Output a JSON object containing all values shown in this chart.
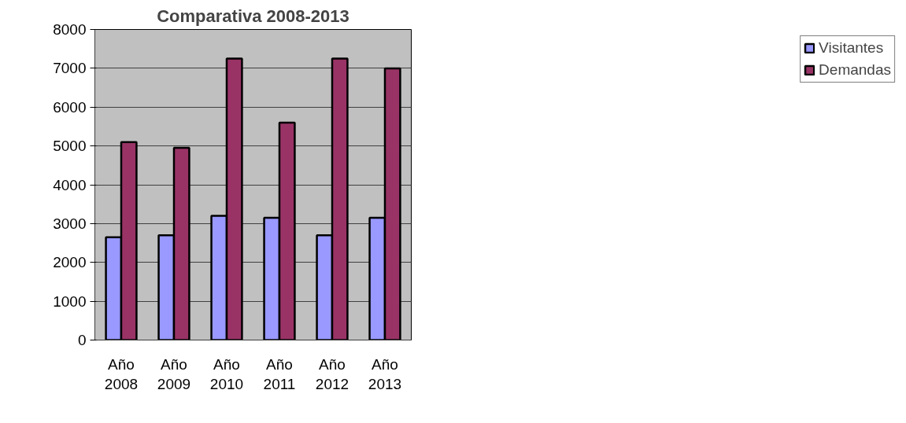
{
  "chart_data": {
    "type": "bar",
    "title": "Comparativa 2008-2013",
    "categories": [
      "Año 2008",
      "Año 2009",
      "Año 2010",
      "Año 2011",
      "Año 2012",
      "Año 2013"
    ],
    "series": [
      {
        "name": "Visitantes",
        "color": "#9999ff",
        "values": [
          2650,
          2700,
          3200,
          3150,
          2700,
          3150
        ]
      },
      {
        "name": "Demandas",
        "color": "#993366",
        "values": [
          5100,
          4950,
          7250,
          5600,
          7250,
          7000
        ]
      }
    ],
    "ylim": [
      0,
      8000
    ],
    "yticks": [
      0,
      1000,
      2000,
      3000,
      4000,
      5000,
      6000,
      7000,
      8000
    ],
    "grid": "y",
    "legend": "right"
  }
}
